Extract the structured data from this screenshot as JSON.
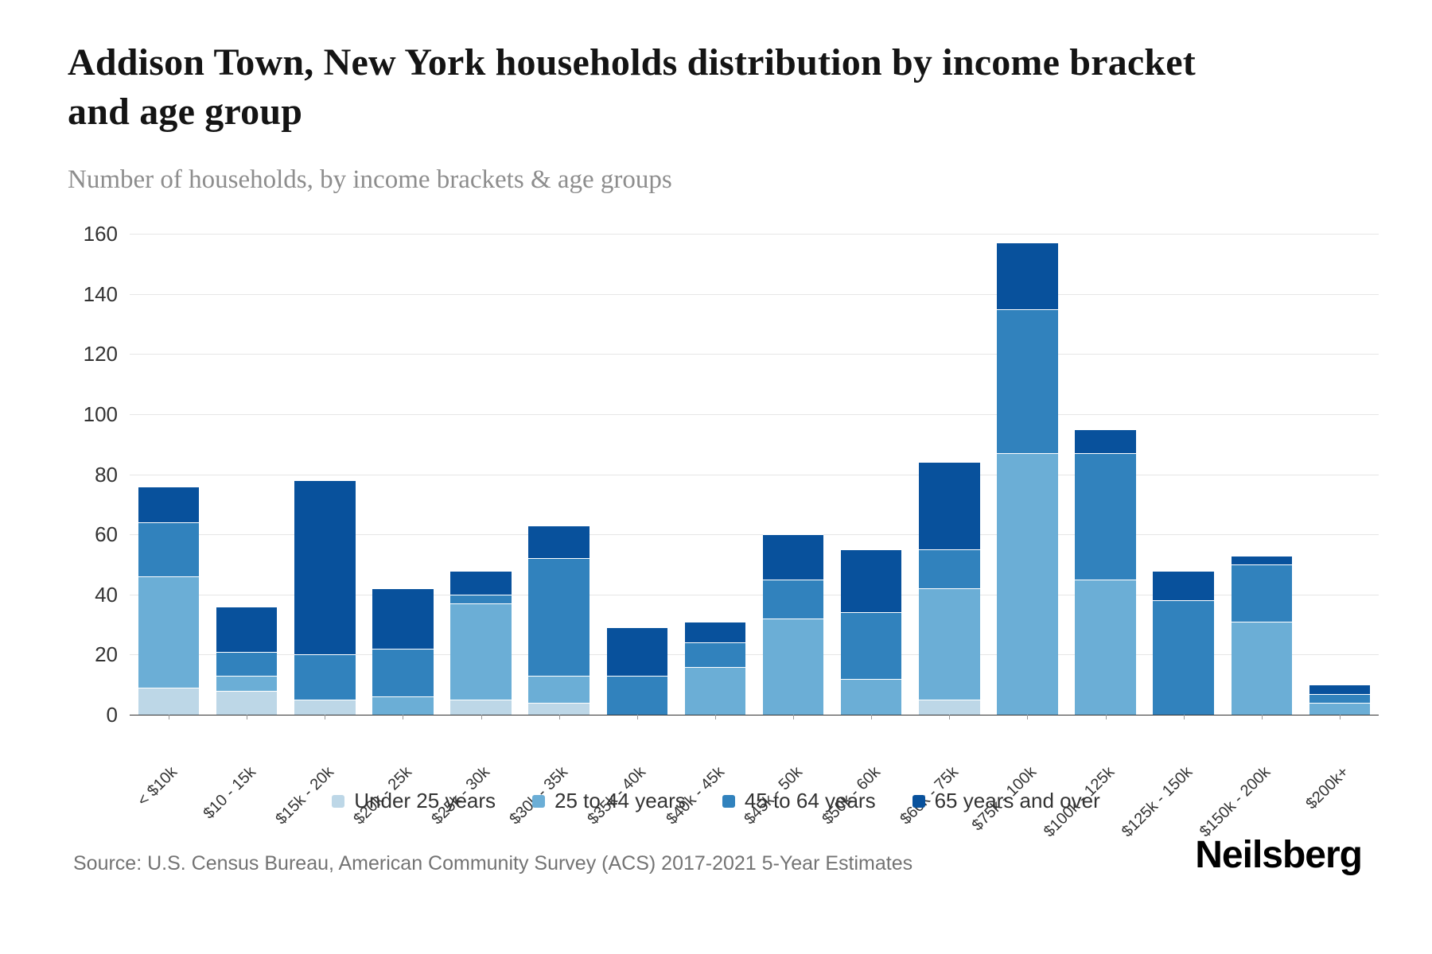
{
  "header": {
    "title": "Addison Town, New York households distribution by income bracket and age group",
    "subtitle": "Number of households, by income brackets & age groups"
  },
  "chart_data": {
    "type": "bar",
    "stacked": true,
    "title": "Addison Town, New York households distribution by income bracket and age group",
    "xlabel": "",
    "ylabel": "Number of households",
    "ylim": [
      0,
      160
    ],
    "ytick_step": 20,
    "grid": true,
    "legend_position": "bottom",
    "categories": [
      "< $10k",
      "$10 - 15k",
      "$15k - 20k",
      "$20k - 25k",
      "$25k - 30k",
      "$30k - 35k",
      "$35k - 40k",
      "$40k - 45k",
      "$45k - 50k",
      "$50k - 60k",
      "$60k - 75k",
      "$75k - 100k",
      "$100k - 125k",
      "$125k - 150k",
      "$150k - 200k",
      "$200k+"
    ],
    "series": [
      {
        "name": "Under 25 years",
        "color": "#bdd7e7",
        "values": [
          9,
          8,
          5,
          0,
          5,
          4,
          0,
          0,
          0,
          0,
          5,
          0,
          0,
          0,
          0,
          0
        ]
      },
      {
        "name": "25 to 44 years",
        "color": "#6baed6",
        "values": [
          37,
          5,
          0,
          6,
          32,
          9,
          0,
          16,
          32,
          12,
          37,
          87,
          45,
          0,
          31,
          4
        ]
      },
      {
        "name": "45 to 64 years",
        "color": "#3182bd",
        "values": [
          18,
          8,
          15,
          16,
          3,
          39,
          13,
          8,
          13,
          22,
          13,
          48,
          42,
          38,
          19,
          3
        ]
      },
      {
        "name": "65 years and over",
        "color": "#08519c",
        "values": [
          12,
          15,
          58,
          20,
          8,
          11,
          16,
          7,
          15,
          21,
          29,
          22,
          8,
          10,
          3,
          3
        ]
      }
    ],
    "stack_totals": [
      76,
      36,
      78,
      42,
      48,
      63,
      29,
      31,
      60,
      55,
      84,
      157,
      95,
      48,
      53,
      10
    ],
    "ytick_labels": [
      "0",
      "20",
      "40",
      "60",
      "80",
      "100",
      "120",
      "140",
      "160"
    ]
  },
  "footer": {
    "source": "Source: U.S. Census Bureau, American Community Survey (ACS) 2017-2021 5-Year Estimates",
    "brand": "Neilsberg"
  }
}
